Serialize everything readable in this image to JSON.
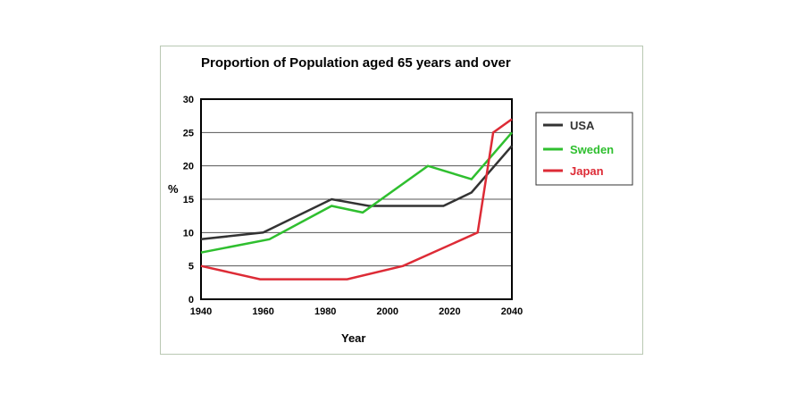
{
  "chart_data": {
    "type": "line",
    "title": "Proportion of Population aged 65 years and over",
    "xlabel": "Year",
    "ylabel": "%",
    "xlim": [
      1940,
      2040
    ],
    "ylim": [
      0,
      30
    ],
    "x_ticks": [
      "1940",
      "1960",
      "1980",
      "2000",
      "2020",
      "2040"
    ],
    "y_ticks": [
      "0",
      "5",
      "10",
      "15",
      "20",
      "25",
      "30"
    ],
    "grid": true,
    "legend_position": "right",
    "series": [
      {
        "name": "USA",
        "color": "#333333",
        "points": [
          [
            1940,
            9
          ],
          [
            1960,
            10
          ],
          [
            1982,
            15
          ],
          [
            1994,
            14
          ],
          [
            2018,
            14
          ],
          [
            2027,
            16
          ],
          [
            2040,
            23
          ]
        ]
      },
      {
        "name": "Sweden",
        "color": "#2fbf2f",
        "points": [
          [
            1940,
            7
          ],
          [
            1962,
            9
          ],
          [
            1982,
            14
          ],
          [
            1992,
            13
          ],
          [
            2013,
            20
          ],
          [
            2027,
            18
          ],
          [
            2040,
            25
          ]
        ]
      },
      {
        "name": "Japan",
        "color": "#dd2b36",
        "points": [
          [
            1940,
            5
          ],
          [
            1959,
            3
          ],
          [
            1987,
            3
          ],
          [
            2005,
            5
          ],
          [
            2029,
            10
          ],
          [
            2034,
            25
          ],
          [
            2040,
            27
          ]
        ]
      }
    ]
  }
}
